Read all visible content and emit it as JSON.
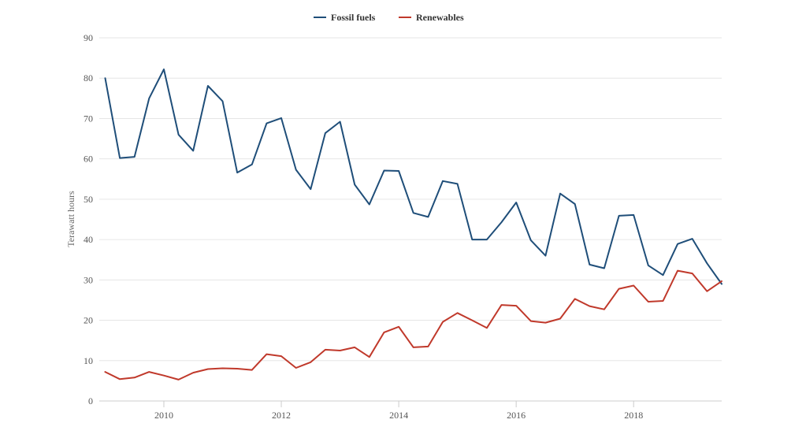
{
  "chart_data": {
    "type": "line",
    "title": "",
    "xlabel": "",
    "ylabel": "Terawatt hours",
    "legend_position": "top-center",
    "grid": true,
    "xlim": [
      2008.9,
      2019.5
    ],
    "ylim": [
      0,
      90
    ],
    "y_ticks": [
      0,
      10,
      20,
      30,
      40,
      50,
      60,
      70,
      80,
      90
    ],
    "x_ticks": [
      2010,
      2012,
      2014,
      2016,
      2018
    ],
    "x": [
      2009.0,
      2009.25,
      2009.5,
      2009.75,
      2010.0,
      2010.25,
      2010.5,
      2010.75,
      2011.0,
      2011.25,
      2011.5,
      2011.75,
      2012.0,
      2012.25,
      2012.5,
      2012.75,
      2013.0,
      2013.25,
      2013.5,
      2013.75,
      2014.0,
      2014.25,
      2014.5,
      2014.75,
      2015.0,
      2015.25,
      2015.5,
      2015.75,
      2016.0,
      2016.25,
      2016.5,
      2016.75,
      2017.0,
      2017.25,
      2017.5,
      2017.75,
      2018.0,
      2018.25,
      2018.5,
      2018.75,
      2019.0,
      2019.25,
      2019.5
    ],
    "series": [
      {
        "name": "Fossil fuels",
        "color": "#1f4e79",
        "values": [
          80.0,
          60.2,
          60.5,
          75.0,
          82.2,
          66.0,
          62.0,
          78.1,
          74.3,
          56.6,
          58.6,
          68.8,
          70.1,
          57.3,
          52.5,
          66.4,
          69.2,
          53.6,
          48.7,
          57.1,
          57.0,
          46.6,
          45.6,
          54.5,
          53.8,
          40.0,
          40.0,
          44.3,
          49.2,
          39.8,
          36.0,
          51.4,
          48.8,
          33.8,
          32.9,
          45.9,
          46.1,
          33.6,
          31.2,
          38.9,
          40.2,
          34.1,
          29.0
        ]
      },
      {
        "name": "Renewables",
        "color": "#c0392b",
        "values": [
          7.2,
          5.4,
          5.8,
          7.2,
          6.3,
          5.3,
          7.0,
          7.9,
          8.1,
          8.0,
          7.7,
          11.6,
          11.1,
          8.2,
          9.6,
          12.7,
          12.5,
          13.3,
          10.9,
          17.0,
          18.4,
          13.3,
          13.5,
          19.6,
          21.8,
          20.0,
          18.1,
          23.8,
          23.6,
          19.8,
          19.4,
          20.4,
          25.3,
          23.5,
          22.7,
          27.8,
          28.6,
          24.6,
          24.8,
          32.3,
          31.6,
          27.2,
          29.7
        ]
      }
    ]
  }
}
